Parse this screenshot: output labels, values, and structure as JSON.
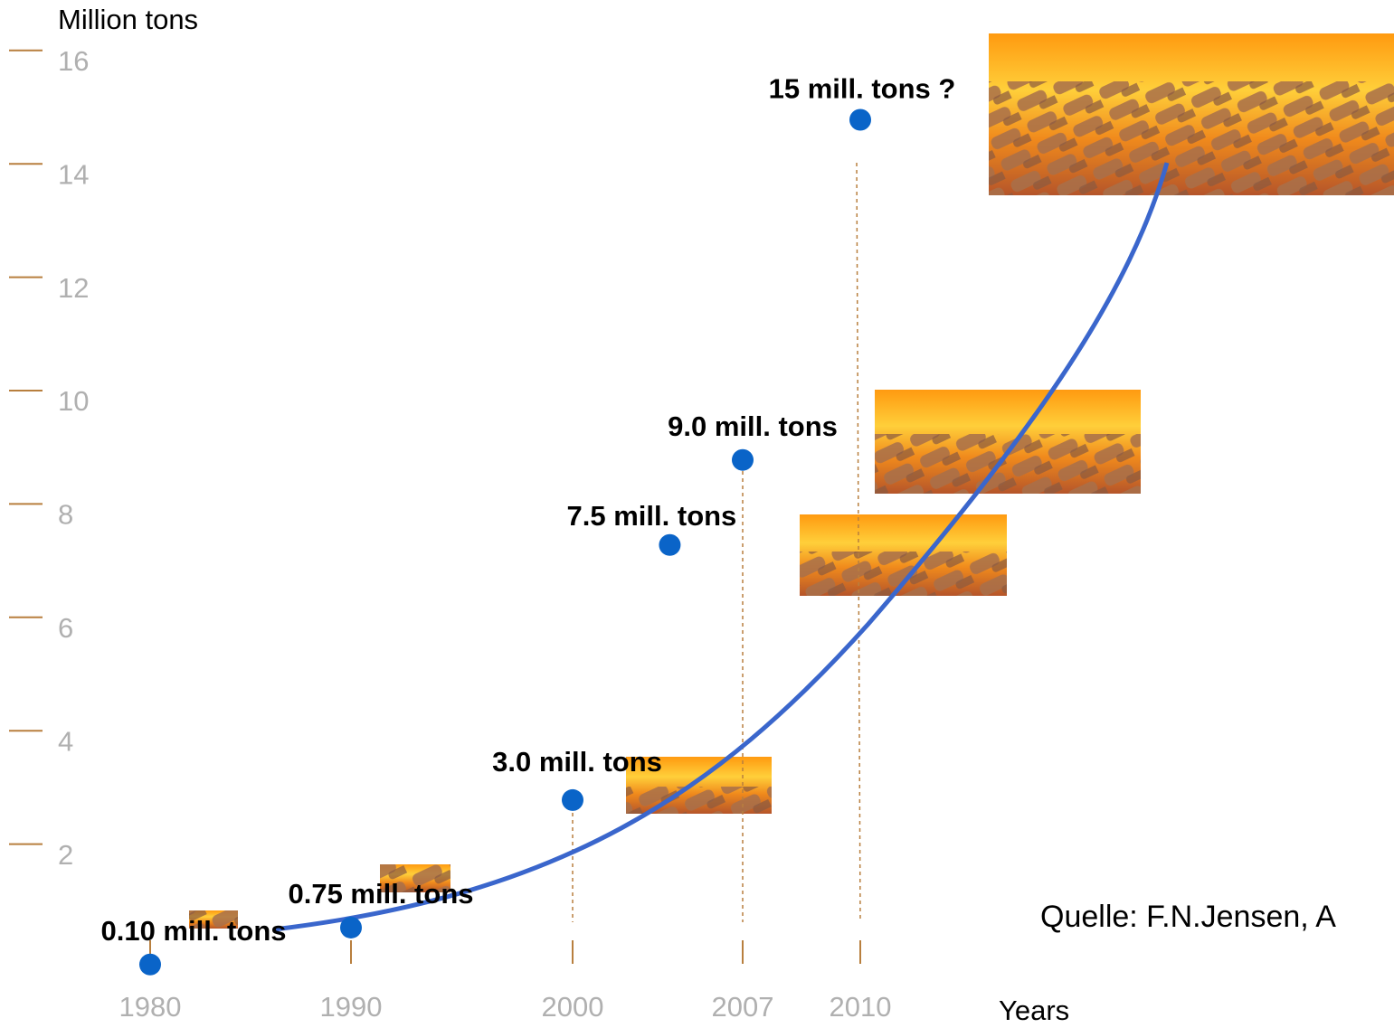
{
  "chart_data": {
    "type": "scatter",
    "y_label": "Million tons",
    "x_label": "Years",
    "source": "Quelle: F.N.Jensen, A",
    "x": [
      1980,
      1990,
      2000,
      2004,
      2007,
      2010
    ],
    "values": [
      0.1,
      0.75,
      3.0,
      7.5,
      9.0,
      15
    ],
    "value_labels": [
      "0.10 mill. tons",
      "0.75 mill. tons",
      "3.0 mill. tons",
      "7.5 mill. tons",
      "9.0 mill. tons",
      "15 mill. tons ?"
    ],
    "color": "#0a64c8",
    "tick_color": "#b87f3e",
    "xticks": [
      1980,
      1990,
      2000,
      2007,
      2010
    ],
    "ylim": [
      0,
      17
    ],
    "yticks": [
      2,
      4,
      6,
      8,
      10,
      12,
      14,
      16
    ]
  }
}
